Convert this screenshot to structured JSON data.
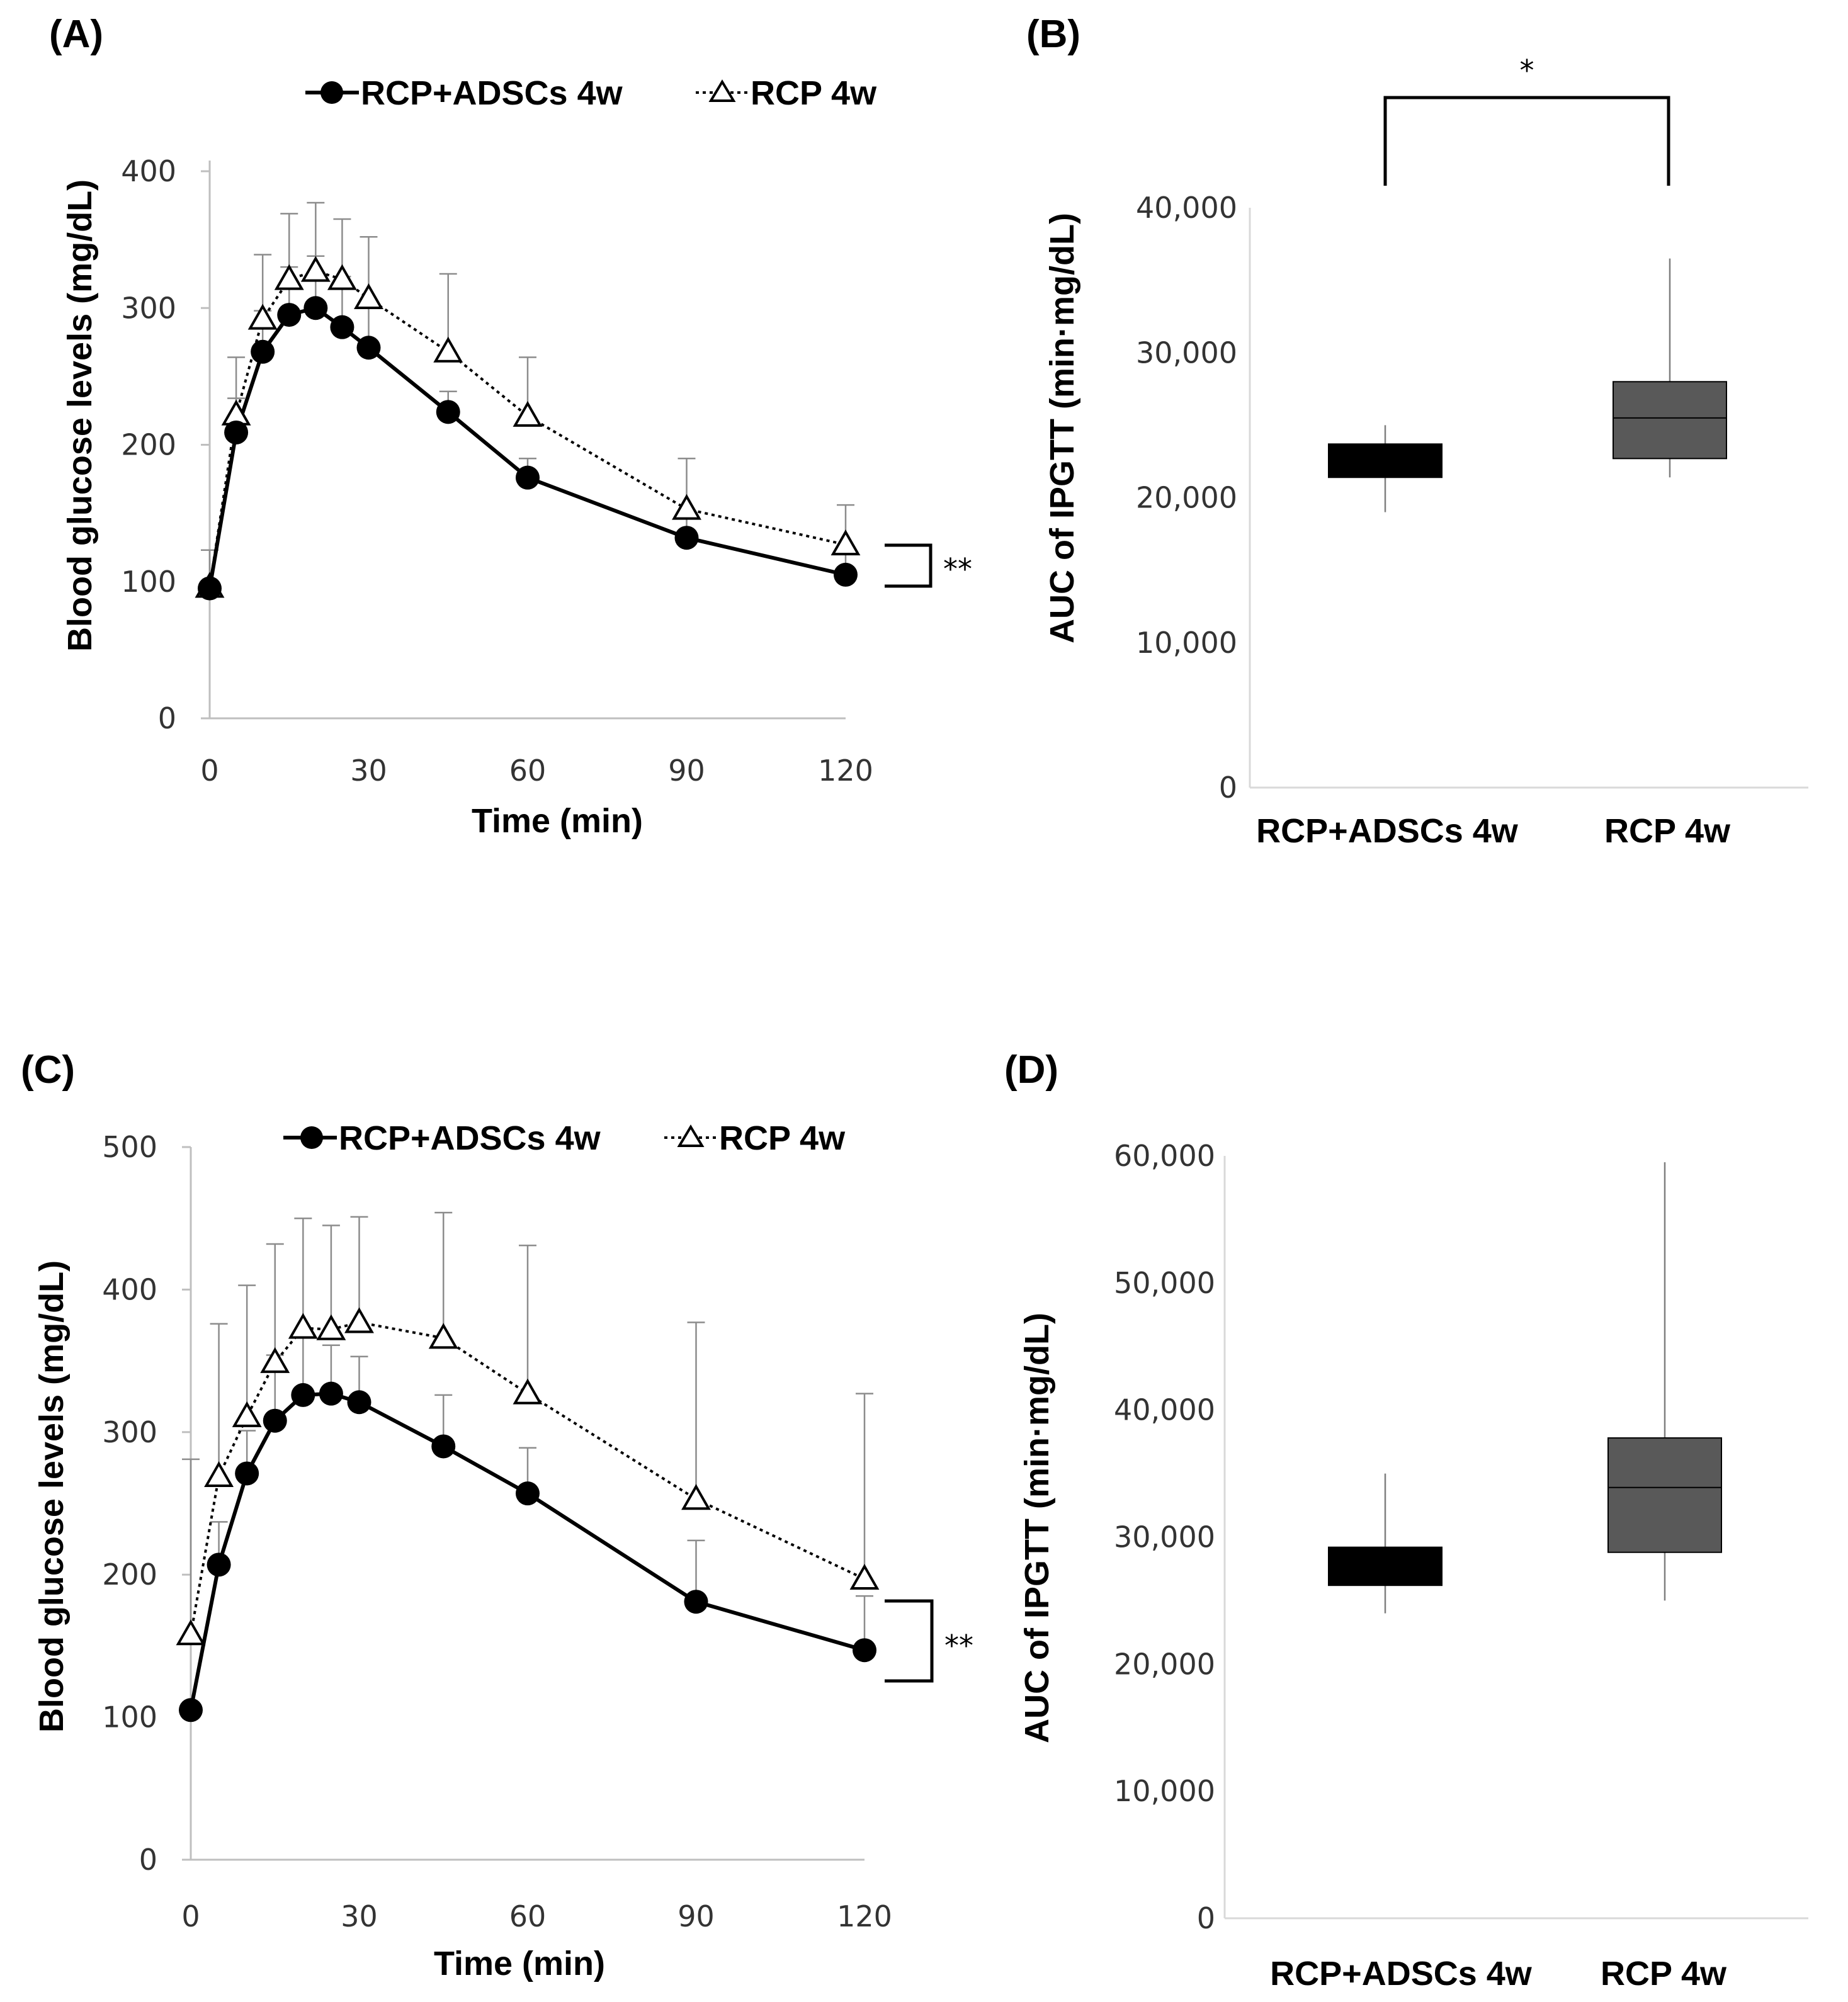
{
  "colors": {
    "series_filled": "#000000",
    "series_open": "#000000",
    "axis": "#bfbfbf",
    "error": "#8c8c8c",
    "box_adscs": "#000000",
    "box_rcp": "#595959"
  },
  "chart_data": [
    {
      "panel": "(A)",
      "type": "line",
      "xlabel": "Time (min)",
      "ylabel": "Blood glucose levels (mg/dL)",
      "xlim": [
        0,
        120
      ],
      "ylim": [
        0,
        400
      ],
      "xticks": [
        0,
        30,
        60,
        90,
        120
      ],
      "yticks": [
        0,
        100,
        200,
        300,
        400
      ],
      "x": [
        0,
        5,
        10,
        15,
        20,
        25,
        30,
        45,
        60,
        90,
        120
      ],
      "legend": [
        "RCP+ADSCs 4w",
        "RCP 4w"
      ],
      "significance": "**",
      "series": [
        {
          "name": "RCP+ADSCs 4w",
          "marker": "filled-circle",
          "line": "solid",
          "values": [
            95,
            209,
            268,
            295,
            300,
            286,
            271,
            224,
            176,
            132,
            105
          ],
          "error": [
            null,
            25,
            30,
            35,
            38,
            37,
            32,
            15,
            14,
            16,
            18
          ]
        },
        {
          "name": "RCP 4w",
          "marker": "open-triangle",
          "line": "dotted",
          "values": [
            96,
            222,
            292,
            321,
            327,
            321,
            307,
            268,
            221,
            153,
            127
          ],
          "error": [
            27,
            42,
            47,
            48,
            50,
            44,
            45,
            57,
            43,
            37,
            29
          ]
        }
      ]
    },
    {
      "panel": "(B)",
      "type": "box",
      "ylabel": "AUC of IPGTT (min·mg/dL)",
      "ylim": [
        0,
        40000
      ],
      "yticks": [
        0,
        10000,
        20000,
        30000,
        40000
      ],
      "ytick_labels": [
        "0",
        "10,000",
        "20,000",
        "30,000",
        "40,000"
      ],
      "categories": [
        "RCP+ADSCs 4w",
        "RCP 4w"
      ],
      "boxes": [
        {
          "name": "RCP+ADSCs 4w",
          "min": 19000,
          "q1": 21400,
          "median": 22500,
          "q3": 23700,
          "max": 25000
        },
        {
          "name": "RCP 4w",
          "min": 21400,
          "q1": 22700,
          "median": 25500,
          "q3": 28000,
          "max": 36500
        }
      ],
      "significance": "*"
    },
    {
      "panel": "(C)",
      "type": "line",
      "xlabel": "Time (min)",
      "ylabel": "Blood glucose levels (mg/dL)",
      "xlim": [
        0,
        120
      ],
      "ylim": [
        0,
        500
      ],
      "xticks": [
        0,
        30,
        60,
        90,
        120
      ],
      "yticks": [
        0,
        100,
        200,
        300,
        400,
        500
      ],
      "x": [
        0,
        5,
        10,
        15,
        20,
        25,
        30,
        45,
        60,
        90,
        120
      ],
      "legend": [
        "RCP+ADSCs 4w",
        "RCP 4w"
      ],
      "significance": "**",
      "series": [
        {
          "name": "RCP+ADSCs 4w",
          "marker": "filled-circle",
          "line": "solid",
          "values": [
            105,
            207,
            271,
            308,
            326,
            327,
            321,
            290,
            257,
            181,
            147
          ],
          "error": [
            null,
            30,
            30,
            46,
            42,
            34,
            32,
            36,
            32,
            43,
            38
          ]
        },
        {
          "name": "RCP 4w",
          "marker": "open-triangle",
          "line": "dotted",
          "values": [
            158,
            269,
            311,
            349,
            373,
            372,
            377,
            366,
            327,
            253,
            197
          ],
          "error": [
            123,
            107,
            92,
            83,
            77,
            73,
            74,
            88,
            104,
            124,
            130
          ]
        }
      ]
    },
    {
      "panel": "(D)",
      "type": "box",
      "ylabel": "AUC of IPGTT (min·mg/dL)",
      "ylim": [
        0,
        60000
      ],
      "yticks": [
        0,
        10000,
        20000,
        30000,
        40000,
        50000,
        60000
      ],
      "ytick_labels": [
        "0",
        "10,000",
        "20,000",
        "30,000",
        "40,000",
        "50,000",
        "60,000"
      ],
      "categories": [
        "RCP+ADSCs 4w",
        "RCP 4w"
      ],
      "boxes": [
        {
          "name": "RCP+ADSCs 4w",
          "min": 24000,
          "q1": 26200,
          "median": 27500,
          "q3": 29200,
          "max": 35000
        },
        {
          "name": "RCP 4w",
          "min": 25000,
          "q1": 28800,
          "median": 33900,
          "q3": 37800,
          "max": 59500
        }
      ]
    }
  ]
}
